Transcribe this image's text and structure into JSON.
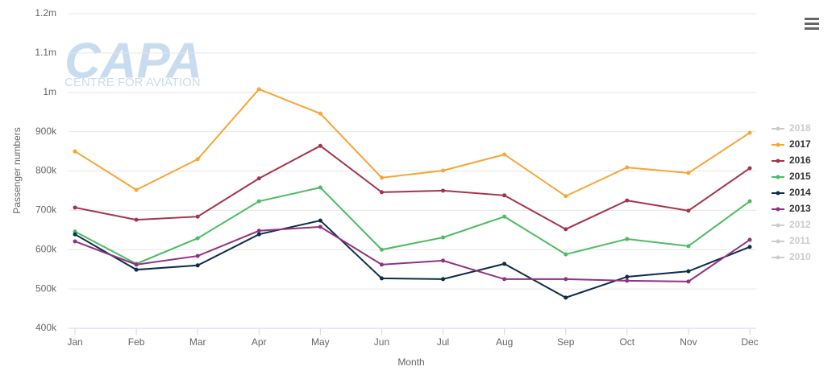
{
  "chart_data": {
    "type": "line",
    "watermark": {
      "title": "CAPA",
      "subtitle": "CENTRE FOR AVIATION"
    },
    "x_label": "Month",
    "y_label": "Passenger numbers",
    "categories": [
      "Jan",
      "Feb",
      "Mar",
      "Apr",
      "May",
      "Jun",
      "Jul",
      "Aug",
      "Sep",
      "Oct",
      "Nov",
      "Dec"
    ],
    "ylim": [
      400000,
      1200000
    ],
    "yticks": [
      {
        "value": 400000,
        "label": "400k"
      },
      {
        "value": 500000,
        "label": "500k"
      },
      {
        "value": 600000,
        "label": "600k"
      },
      {
        "value": 700000,
        "label": "700k"
      },
      {
        "value": 800000,
        "label": "800k"
      },
      {
        "value": 900000,
        "label": "900k"
      },
      {
        "value": 1000000,
        "label": "1m"
      },
      {
        "value": 1100000,
        "label": "1.1m"
      },
      {
        "value": 1200000,
        "label": "1.2m"
      }
    ],
    "grid": true,
    "legend": "right",
    "series": [
      {
        "name": "2018",
        "color": "#cccccc",
        "visible": false,
        "values": [
          null,
          null,
          null,
          null,
          null,
          null,
          null,
          null,
          null,
          null,
          null,
          null
        ]
      },
      {
        "name": "2017",
        "color": "#f7a535",
        "visible": true,
        "values": [
          850000,
          752000,
          830000,
          1008000,
          946000,
          783000,
          801000,
          842000,
          736000,
          809000,
          795000,
          897000
        ]
      },
      {
        "name": "2016",
        "color": "#a3344b",
        "visible": true,
        "values": [
          707000,
          676000,
          684000,
          781000,
          864000,
          746000,
          750000,
          738000,
          652000,
          725000,
          699000,
          807000
        ]
      },
      {
        "name": "2015",
        "color": "#4dbb61",
        "visible": true,
        "values": [
          646000,
          564000,
          629000,
          723000,
          758000,
          600000,
          631000,
          684000,
          588000,
          627000,
          609000,
          723000
        ]
      },
      {
        "name": "2014",
        "color": "#0d2d4b",
        "visible": true,
        "values": [
          639000,
          549000,
          560000,
          639000,
          674000,
          527000,
          525000,
          564000,
          478000,
          531000,
          545000,
          607000
        ]
      },
      {
        "name": "2013",
        "color": "#8e3383",
        "visible": true,
        "values": [
          621000,
          562000,
          584000,
          648000,
          658000,
          562000,
          572000,
          525000,
          525000,
          521000,
          519000,
          625000
        ]
      },
      {
        "name": "2012",
        "color": "#cccccc",
        "visible": false,
        "values": [
          null,
          null,
          null,
          null,
          null,
          null,
          null,
          null,
          null,
          null,
          null,
          null
        ]
      },
      {
        "name": "2011",
        "color": "#cccccc",
        "visible": false,
        "values": [
          null,
          null,
          null,
          null,
          null,
          null,
          null,
          null,
          null,
          null,
          null,
          null
        ]
      },
      {
        "name": "2010",
        "color": "#cccccc",
        "visible": false,
        "values": [
          null,
          null,
          null,
          null,
          null,
          null,
          null,
          null,
          null,
          null,
          null,
          null
        ]
      }
    ]
  }
}
